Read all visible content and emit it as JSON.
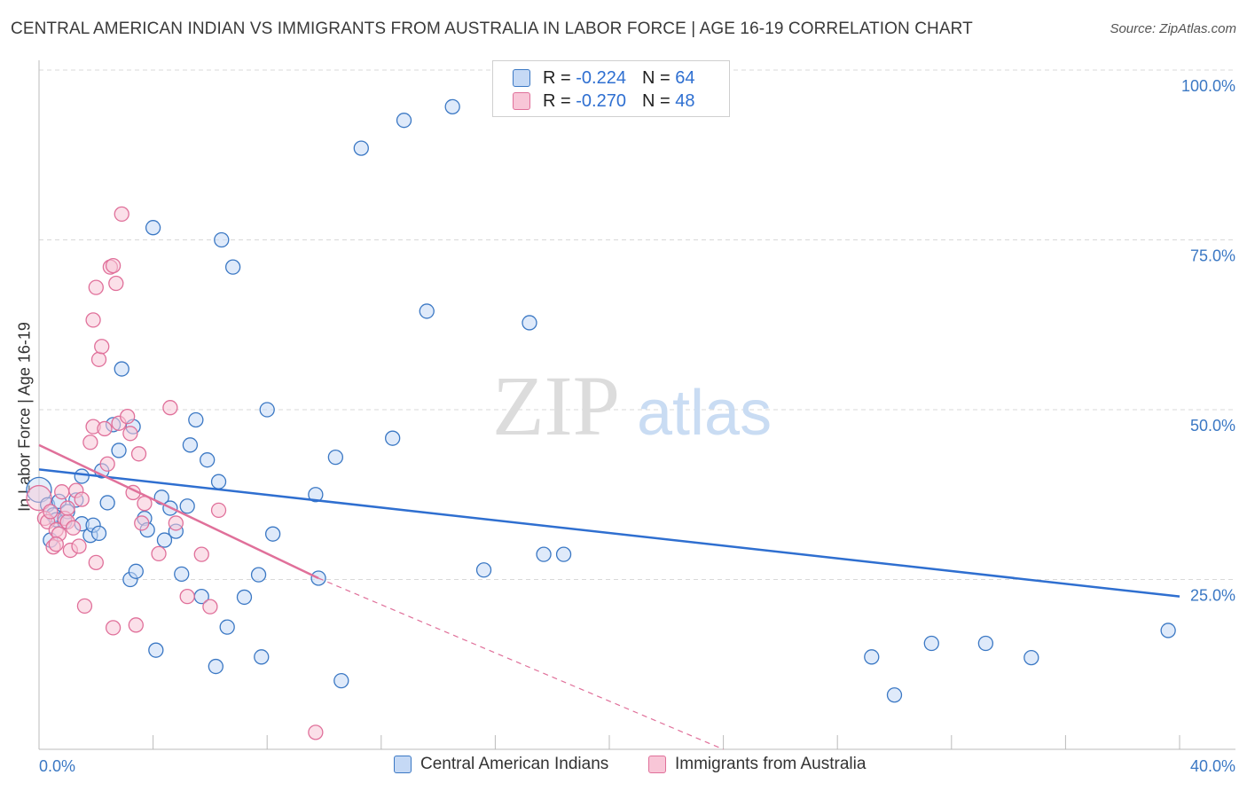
{
  "header": {
    "title": "CENTRAL AMERICAN INDIAN VS IMMIGRANTS FROM AUSTRALIA IN LABOR FORCE | AGE 16-19 CORRELATION CHART",
    "source": "Source: ZipAtlas.com"
  },
  "watermark": {
    "zip": "ZIP",
    "atlas": "atlas"
  },
  "legend": {
    "rows": [
      {
        "r_label": "R =",
        "r_value": "-0.224",
        "n_label": "N =",
        "n_value": "64"
      },
      {
        "r_label": "R =",
        "r_value": "-0.270",
        "n_label": "N =",
        "n_value": "48"
      }
    ]
  },
  "bottom_legend": [
    "Central American Indians",
    "Immigrants from Australia"
  ],
  "colors": {
    "blue": "#3b78c4",
    "blue_fill": "#c5d9f5",
    "blue_line": "#2f6fd0",
    "pink": "#e0709a",
    "pink_fill": "#f8c6d7",
    "pink_line": "#e0709a",
    "grid": "#d9d9d9",
    "axis": "#999999"
  },
  "chart_data": {
    "type": "scatter",
    "title": "CENTRAL AMERICAN INDIAN VS IMMIGRANTS FROM AUSTRALIA IN LABOR FORCE | AGE 16-19 CORRELATION CHART",
    "xlabel": "",
    "ylabel": "In Labor Force | Age 16-19",
    "xlim": [
      0,
      40
    ],
    "ylim": [
      0,
      100
    ],
    "x_tick_labels": [
      "0.0%",
      "40.0%"
    ],
    "y_ticks": [
      25,
      50,
      75,
      100
    ],
    "y_tick_labels": [
      "25.0%",
      "50.0%",
      "75.0%",
      "100.0%"
    ],
    "series": [
      {
        "name": "Central American Indians",
        "color": "#3b78c4",
        "R": -0.224,
        "N": 64,
        "trend": {
          "x0": 0,
          "y0": 41.2,
          "x1": 40,
          "y1": 22.5
        },
        "points": [
          [
            0.0,
            38.2
          ],
          [
            0.3,
            36.0
          ],
          [
            0.4,
            30.8
          ],
          [
            0.5,
            34.5
          ],
          [
            0.6,
            33.8
          ],
          [
            0.7,
            36.5
          ],
          [
            0.9,
            33.5
          ],
          [
            1.0,
            35.0
          ],
          [
            1.3,
            36.7
          ],
          [
            1.5,
            33.2
          ],
          [
            1.5,
            40.2
          ],
          [
            1.8,
            31.5
          ],
          [
            1.9,
            33.0
          ],
          [
            2.1,
            31.8
          ],
          [
            2.2,
            41.0
          ],
          [
            2.4,
            36.3
          ],
          [
            2.6,
            47.8
          ],
          [
            2.8,
            44.0
          ],
          [
            2.9,
            56.0
          ],
          [
            3.2,
            25.0
          ],
          [
            3.3,
            47.5
          ],
          [
            3.4,
            26.2
          ],
          [
            3.7,
            34.0
          ],
          [
            3.8,
            32.3
          ],
          [
            4.0,
            76.8
          ],
          [
            4.1,
            14.6
          ],
          [
            4.3,
            37.1
          ],
          [
            4.4,
            30.8
          ],
          [
            4.6,
            35.5
          ],
          [
            4.8,
            32.1
          ],
          [
            5.0,
            25.8
          ],
          [
            5.2,
            35.8
          ],
          [
            5.3,
            44.8
          ],
          [
            5.5,
            48.5
          ],
          [
            5.7,
            22.5
          ],
          [
            5.9,
            42.6
          ],
          [
            6.2,
            12.2
          ],
          [
            6.3,
            39.4
          ],
          [
            6.4,
            75.0
          ],
          [
            6.6,
            18.0
          ],
          [
            6.8,
            71.0
          ],
          [
            7.2,
            22.4
          ],
          [
            7.7,
            25.7
          ],
          [
            7.8,
            13.6
          ],
          [
            8.0,
            50.0
          ],
          [
            8.2,
            31.7
          ],
          [
            9.7,
            37.5
          ],
          [
            9.8,
            25.2
          ],
          [
            10.4,
            43.0
          ],
          [
            10.6,
            10.1
          ],
          [
            11.3,
            88.5
          ],
          [
            12.4,
            45.8
          ],
          [
            12.8,
            92.6
          ],
          [
            13.6,
            64.5
          ],
          [
            14.5,
            94.6
          ],
          [
            15.6,
            26.4
          ],
          [
            17.2,
            62.8
          ],
          [
            17.7,
            28.7
          ],
          [
            18.4,
            28.7
          ],
          [
            29.2,
            13.6
          ],
          [
            30.0,
            8.0
          ],
          [
            31.3,
            15.6
          ],
          [
            33.2,
            15.6
          ],
          [
            34.8,
            13.5
          ],
          [
            39.6,
            17.5
          ]
        ]
      },
      {
        "name": "Immigrants from Australia",
        "color": "#e0709a",
        "R": -0.27,
        "N": 48,
        "trend": {
          "x0": 0,
          "y0": 44.8,
          "x1": 9.8,
          "y1": 25.2,
          "dash_x1": 24.0,
          "dash_y1": 0
        },
        "points": [
          [
            0.0,
            37.0
          ],
          [
            0.2,
            34.0
          ],
          [
            0.3,
            33.5
          ],
          [
            0.4,
            35.0
          ],
          [
            0.5,
            29.8
          ],
          [
            0.6,
            32.3
          ],
          [
            0.7,
            31.7
          ],
          [
            0.8,
            37.9
          ],
          [
            0.9,
            34.0
          ],
          [
            1.0,
            33.5
          ],
          [
            1.1,
            29.3
          ],
          [
            1.2,
            32.6
          ],
          [
            1.3,
            38.1
          ],
          [
            1.4,
            29.9
          ],
          [
            1.5,
            36.8
          ],
          [
            1.6,
            21.1
          ],
          [
            1.8,
            45.2
          ],
          [
            1.9,
            63.2
          ],
          [
            1.9,
            47.5
          ],
          [
            2.0,
            27.5
          ],
          [
            2.0,
            68.0
          ],
          [
            2.1,
            57.4
          ],
          [
            2.2,
            59.3
          ],
          [
            2.3,
            47.2
          ],
          [
            2.4,
            42.0
          ],
          [
            2.5,
            71.0
          ],
          [
            2.6,
            71.2
          ],
          [
            2.7,
            68.6
          ],
          [
            2.8,
            48.0
          ],
          [
            2.9,
            78.8
          ],
          [
            3.1,
            49.0
          ],
          [
            3.2,
            46.5
          ],
          [
            3.3,
            37.8
          ],
          [
            3.4,
            18.3
          ],
          [
            3.5,
            43.5
          ],
          [
            3.6,
            33.3
          ],
          [
            3.7,
            36.2
          ],
          [
            4.2,
            28.8
          ],
          [
            4.6,
            50.3
          ],
          [
            4.8,
            33.3
          ],
          [
            5.2,
            22.5
          ],
          [
            5.7,
            28.7
          ],
          [
            6.0,
            21.0
          ],
          [
            6.3,
            35.2
          ],
          [
            9.7,
            2.5
          ],
          [
            2.6,
            17.9
          ],
          [
            0.6,
            30.2
          ],
          [
            1.0,
            35.5
          ]
        ]
      }
    ]
  }
}
